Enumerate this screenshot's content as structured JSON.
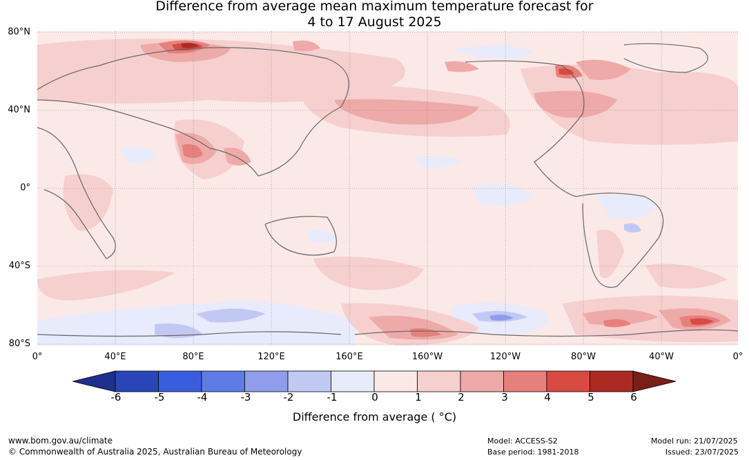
{
  "title": {
    "line1": "Difference from average mean maximum temperature forecast for",
    "line2": "4 to 17 August 2025"
  },
  "lat_labels": [
    "80°N",
    "40°N",
    "0°",
    "40°S",
    "80°S"
  ],
  "lon_labels": [
    "0°",
    "40°E",
    "80°E",
    "120°E",
    "160°E",
    "160°W",
    "120°W",
    "80°W",
    "40°W",
    "0°"
  ],
  "colorbar": {
    "ticks": [
      "-6",
      "-5",
      "-4",
      "-3",
      "-2",
      "-1",
      "0",
      "1",
      "2",
      "3",
      "4",
      "5",
      "6"
    ],
    "colors": [
      "#1f2f8c",
      "#2a45b8",
      "#3a5de0",
      "#5f7be6",
      "#8e9eec",
      "#c1c9f3",
      "#e7ebfb",
      "#fbe9e8",
      "#f5d0ce",
      "#eeaaa8",
      "#e6807c",
      "#d94a42",
      "#ab2a22",
      "#7a1f18"
    ],
    "label": "Difference from average ( °C)"
  },
  "footer": {
    "website": "www.bom.gov.au/climate",
    "copyright": "© Commonwealth of Australia 2025, Australian Bureau of Meteorology",
    "model": "Model: ACCESS-S2",
    "base_period": "Base period: 1981-2018",
    "model_run": "Model run: 21/07/2025",
    "issued": "Issued: 23/07/2025"
  }
}
